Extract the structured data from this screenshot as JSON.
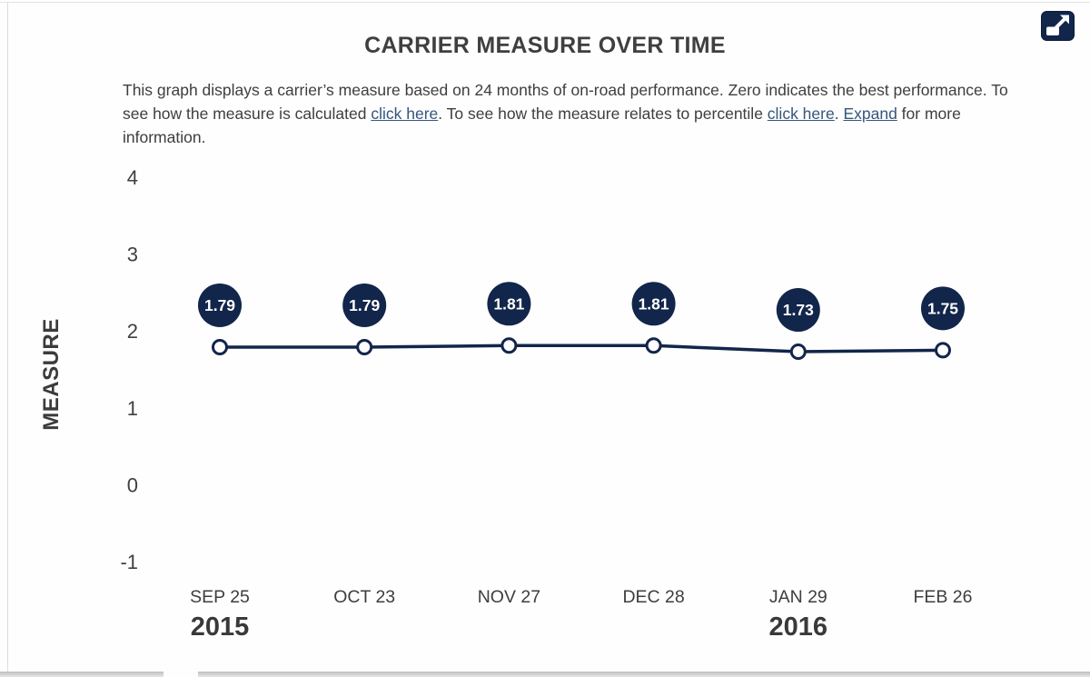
{
  "header": {
    "expand_button_tooltip": "Expand"
  },
  "description": {
    "part1": "This graph displays a carrier’s measure based on 24 months of on-road performance. Zero indicates the best performance. To see how the measure is calculated ",
    "link1": "click here",
    "part2": ". To see how the measure relates to percentile ",
    "link2": "click here",
    "part3": ". ",
    "link3": "Expand",
    "part4": " for more information."
  },
  "colors": {
    "navy": "#12254a",
    "link_blue": "#35567d",
    "text_gray": "#3e3e3e"
  },
  "chart_data": {
    "type": "line",
    "title": "CARRIER MEASURE OVER TIME",
    "xlabel": "",
    "ylabel": "MEASURE",
    "categories": [
      "SEP 25",
      "OCT 23",
      "NOV 27",
      "DEC 28",
      "JAN 29",
      "FEB 26"
    ],
    "values": [
      1.79,
      1.79,
      1.81,
      1.81,
      1.73,
      1.75
    ],
    "point_labels": [
      "1.79",
      "1.79",
      "1.81",
      "1.81",
      "1.73",
      "1.75"
    ],
    "ylim": [
      -1,
      4
    ],
    "yticks": [
      4,
      3,
      2,
      1,
      0,
      -1
    ],
    "year_labels": [
      {
        "index": 0,
        "label": "2015"
      },
      {
        "index": 4,
        "label": "2016"
      }
    ],
    "grid": false,
    "legend": "none",
    "marker_style": "open-circle",
    "value_badge_style": "filled-circle"
  }
}
